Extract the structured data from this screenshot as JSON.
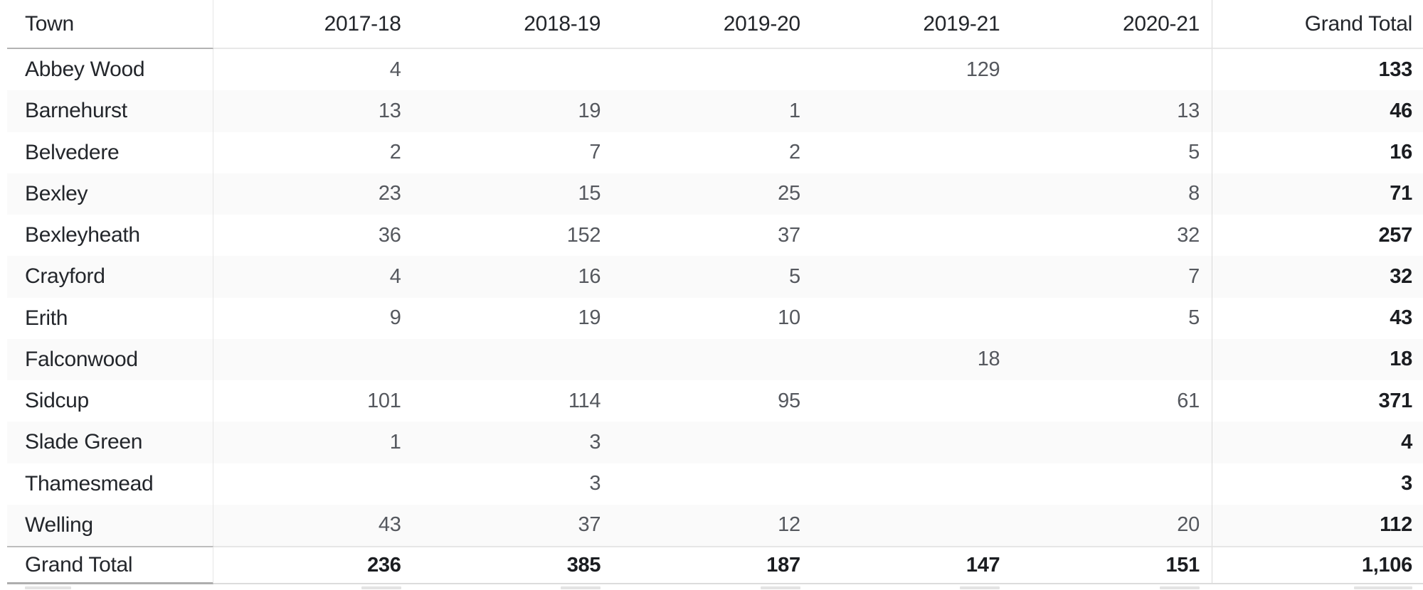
{
  "chart_data": {
    "type": "table",
    "title": "",
    "row_header": "Town",
    "year_columns": [
      "2017-18",
      "2018-19",
      "2019-20",
      "2019-21",
      "2020-21"
    ],
    "grand_total_label": "Grand Total",
    "rows": [
      {
        "town": "Abbey Wood",
        "values": [
          "4",
          "",
          "",
          "129",
          ""
        ],
        "grand_total": "133"
      },
      {
        "town": "Barnehurst",
        "values": [
          "13",
          "19",
          "1",
          "",
          "13"
        ],
        "grand_total": "46"
      },
      {
        "town": "Belvedere",
        "values": [
          "2",
          "7",
          "2",
          "",
          "5"
        ],
        "grand_total": "16"
      },
      {
        "town": "Bexley",
        "values": [
          "23",
          "15",
          "25",
          "",
          "8"
        ],
        "grand_total": "71"
      },
      {
        "town": "Bexleyheath",
        "values": [
          "36",
          "152",
          "37",
          "",
          "32"
        ],
        "grand_total": "257"
      },
      {
        "town": "Crayford",
        "values": [
          "4",
          "16",
          "5",
          "",
          "7"
        ],
        "grand_total": "32"
      },
      {
        "town": "Erith",
        "values": [
          "9",
          "19",
          "10",
          "",
          "5"
        ],
        "grand_total": "43"
      },
      {
        "town": "Falconwood",
        "values": [
          "",
          "",
          "",
          "18",
          ""
        ],
        "grand_total": "18"
      },
      {
        "town": "Sidcup",
        "values": [
          "101",
          "114",
          "95",
          "",
          "61"
        ],
        "grand_total": "371"
      },
      {
        "town": "Slade Green",
        "values": [
          "1",
          "3",
          "",
          "",
          ""
        ],
        "grand_total": "4"
      },
      {
        "town": "Thamesmead",
        "values": [
          "",
          "3",
          "",
          "",
          ""
        ],
        "grand_total": "3"
      },
      {
        "town": "Welling",
        "values": [
          "43",
          "37",
          "12",
          "",
          "20"
        ],
        "grand_total": "112"
      }
    ],
    "grand_total_row": {
      "label": "Grand Total",
      "values": [
        "236",
        "385",
        "187",
        "147",
        "151"
      ],
      "grand_total": "1,106"
    },
    "layout": {
      "grid": "row-banding",
      "banding_color": "#fafafa",
      "header_text_color": "#23262b",
      "value_text_color": "#55585e",
      "total_text_color": "#1b1d21",
      "separator_color": "#d9d9d9"
    }
  }
}
